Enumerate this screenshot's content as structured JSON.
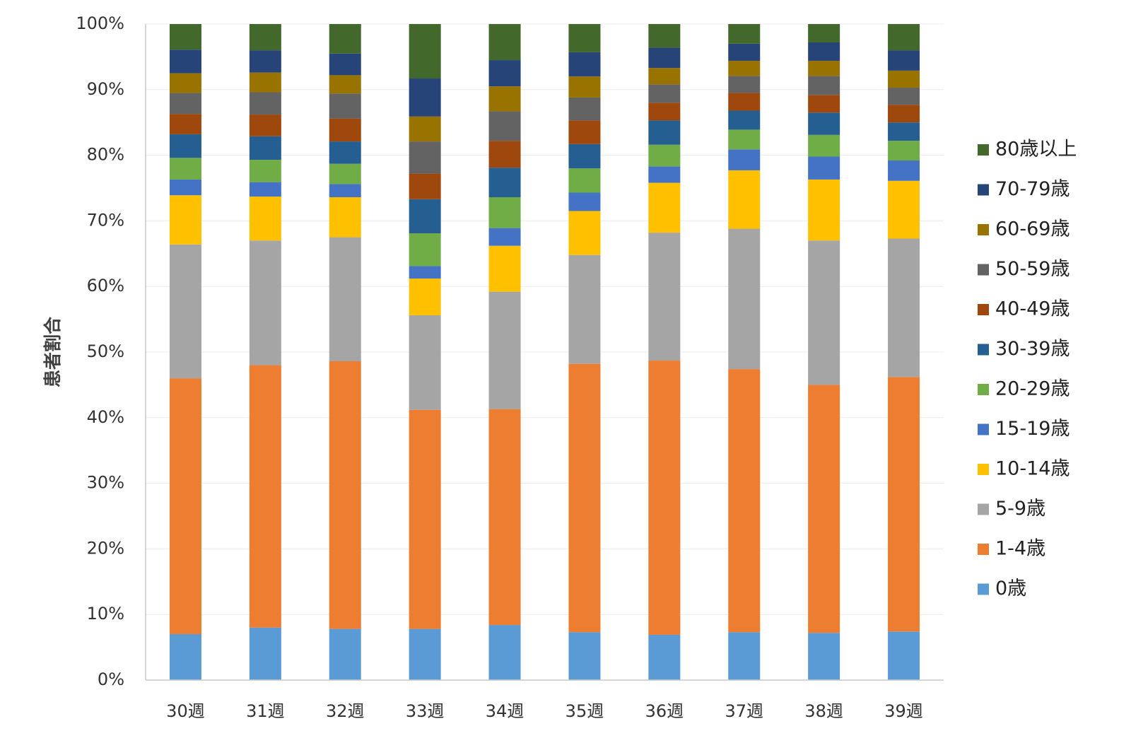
{
  "chart_data": {
    "type": "bar",
    "stacked": true,
    "title": "",
    "xlabel": "",
    "ylabel": "患者割合",
    "ylim": [
      0,
      100
    ],
    "ytick_labels": [
      "0%",
      "10%",
      "20%",
      "30%",
      "40%",
      "50%",
      "60%",
      "70%",
      "80%",
      "90%",
      "100%"
    ],
    "legend_position": "right",
    "categories": [
      "30週",
      "31週",
      "32週",
      "33週",
      "34週",
      "35週",
      "36週",
      "37週",
      "38週",
      "39週"
    ],
    "series": [
      {
        "name": "0歳",
        "color": "#5B9BD5",
        "values": [
          7.0,
          8.0,
          7.8,
          7.8,
          8.4,
          7.3,
          6.9,
          7.3,
          7.2,
          7.4
        ]
      },
      {
        "name": "1-4歳",
        "color": "#ED7D31",
        "values": [
          39.0,
          40.0,
          40.8,
          33.4,
          32.9,
          40.9,
          41.8,
          40.1,
          37.8,
          38.8
        ]
      },
      {
        "name": "5-9歳",
        "color": "#A5A5A5",
        "values": [
          20.4,
          19.0,
          18.9,
          14.4,
          17.9,
          16.6,
          19.5,
          21.4,
          22.0,
          21.1
        ]
      },
      {
        "name": "10-14歳",
        "color": "#FFC000",
        "values": [
          7.5,
          6.7,
          6.1,
          5.6,
          7.0,
          6.7,
          7.6,
          8.9,
          9.3,
          8.8
        ]
      },
      {
        "name": "15-19歳",
        "color": "#4472C4",
        "values": [
          2.4,
          2.2,
          2.0,
          1.9,
          2.7,
          2.8,
          2.5,
          3.2,
          3.5,
          3.1
        ]
      },
      {
        "name": "20-29歳",
        "color": "#70AD47",
        "values": [
          3.3,
          3.4,
          3.1,
          5.0,
          4.7,
          3.7,
          3.3,
          3.0,
          3.3,
          3.0
        ]
      },
      {
        "name": "30-39歳",
        "color": "#255E91",
        "values": [
          3.6,
          3.6,
          3.4,
          5.2,
          4.5,
          3.7,
          3.7,
          2.9,
          3.4,
          2.8
        ]
      },
      {
        "name": "40-49歳",
        "color": "#9E480E",
        "values": [
          3.1,
          3.3,
          3.5,
          3.9,
          4.1,
          3.6,
          2.7,
          2.7,
          2.7,
          2.7
        ]
      },
      {
        "name": "50-59歳",
        "color": "#636363",
        "values": [
          3.2,
          3.4,
          3.8,
          4.9,
          4.5,
          3.5,
          2.8,
          2.6,
          2.9,
          2.6
        ]
      },
      {
        "name": "60-69歳",
        "color": "#997300",
        "values": [
          3.0,
          3.0,
          2.8,
          3.8,
          3.8,
          3.2,
          2.5,
          2.3,
          2.3,
          2.6
        ]
      },
      {
        "name": "70-79歳",
        "color": "#264478",
        "values": [
          3.6,
          3.4,
          3.3,
          5.8,
          4.0,
          3.7,
          3.1,
          2.6,
          2.8,
          3.1
        ]
      },
      {
        "name": "80歳以上",
        "color": "#43682B",
        "values": [
          3.9,
          4.0,
          4.5,
          8.3,
          5.5,
          4.3,
          3.6,
          3.0,
          2.8,
          4.0
        ]
      }
    ]
  }
}
